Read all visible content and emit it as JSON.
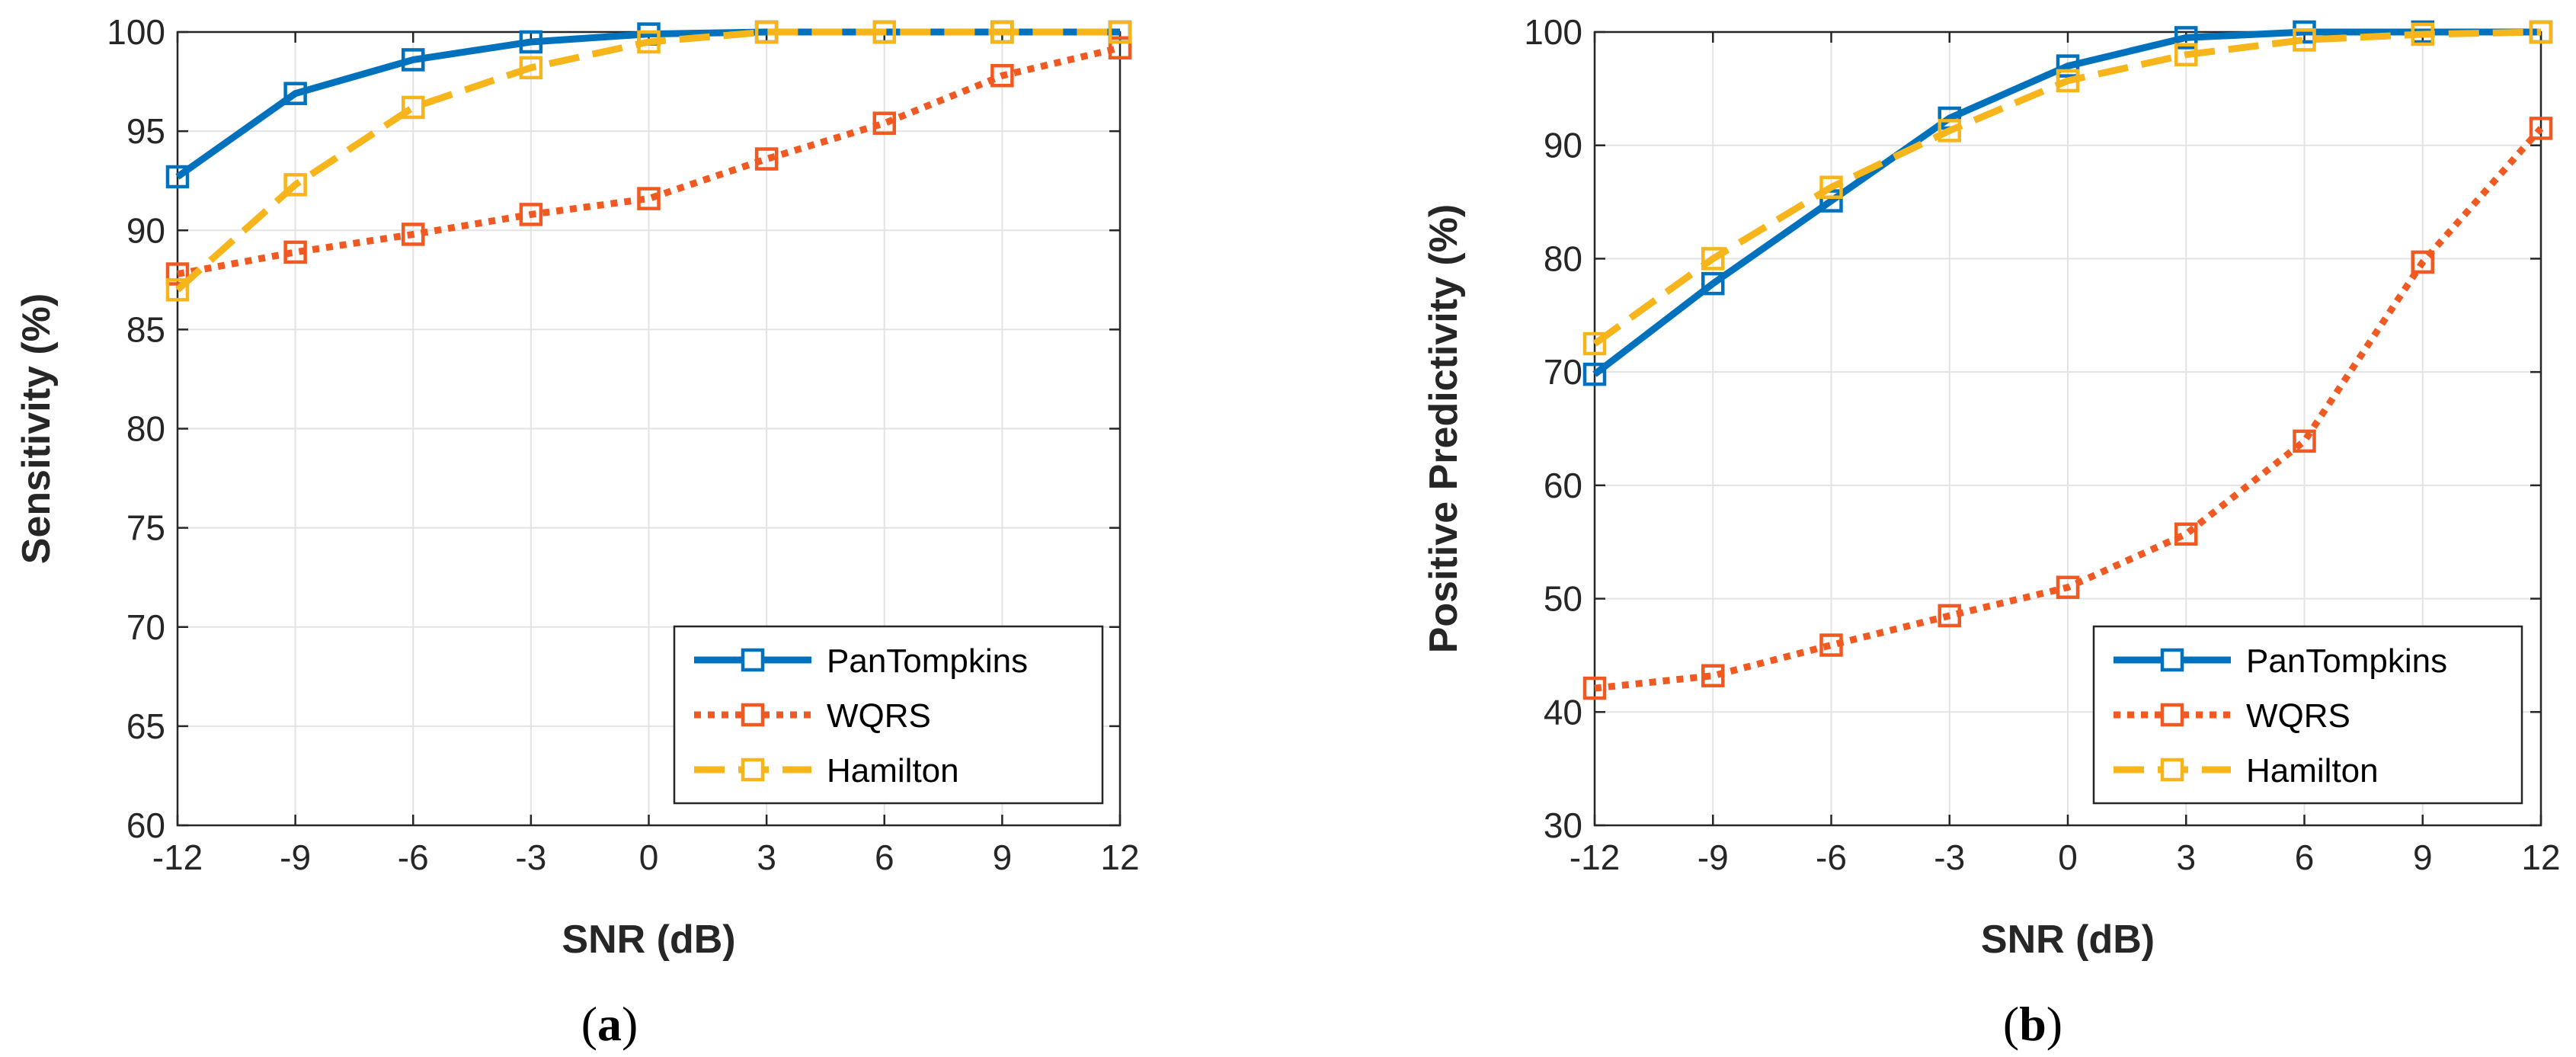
{
  "colors": {
    "pantompkins": "#0072BD",
    "wqrs": "#F05A22",
    "hamilton": "#F5B51B",
    "grid": "#e3e3e3",
    "axis": "#262626"
  },
  "chart_data": [
    {
      "type": "line",
      "caption": {
        "open": "(",
        "letter": "a",
        "close": ")"
      },
      "xlabel": "SNR (dB)",
      "ylabel": "Sensitivity (%)",
      "x": [
        -12,
        -9,
        -6,
        -3,
        0,
        3,
        6,
        9,
        12
      ],
      "xticks": [
        "-12",
        "-9",
        "-6",
        "-3",
        "0",
        "3",
        "6",
        "9",
        "12"
      ],
      "yticks": [
        "60",
        "65",
        "70",
        "75",
        "80",
        "85",
        "90",
        "95",
        "100"
      ],
      "xlim": [
        -12,
        12
      ],
      "ylim": [
        60,
        100
      ],
      "grid": true,
      "legend_position": "bottom-right",
      "series": [
        {
          "name": "PanTompkins",
          "style": "solid",
          "values": [
            92.7,
            96.9,
            98.6,
            99.5,
            99.9,
            100,
            100,
            100,
            100
          ]
        },
        {
          "name": "WQRS",
          "style": "dotted",
          "values": [
            87.8,
            88.9,
            89.8,
            90.8,
            91.6,
            93.6,
            95.4,
            97.8,
            99.2
          ]
        },
        {
          "name": "Hamilton",
          "style": "dashed",
          "values": [
            87.0,
            92.3,
            96.2,
            98.2,
            99.5,
            100,
            100,
            100,
            100
          ]
        }
      ]
    },
    {
      "type": "line",
      "caption": {
        "open": "(",
        "letter": "b",
        "close": ")"
      },
      "xlabel": "SNR (dB)",
      "ylabel": "Positive Predictivity (%)",
      "x": [
        -12,
        -9,
        -6,
        -3,
        0,
        3,
        6,
        9,
        12
      ],
      "xticks": [
        "-12",
        "-9",
        "-6",
        "-3",
        "0",
        "3",
        "6",
        "9",
        "12"
      ],
      "yticks": [
        "30",
        "40",
        "50",
        "60",
        "70",
        "80",
        "90",
        "100"
      ],
      "xlim": [
        -12,
        12
      ],
      "ylim": [
        30,
        100
      ],
      "grid": true,
      "legend_position": "bottom-right",
      "series": [
        {
          "name": "PanTompkins",
          "style": "solid",
          "values": [
            69.8,
            77.8,
            85.1,
            92.4,
            97.0,
            99.5,
            100,
            100,
            100
          ]
        },
        {
          "name": "WQRS",
          "style": "dotted",
          "values": [
            42.1,
            43.2,
            45.9,
            48.5,
            51.0,
            55.7,
            63.9,
            79.7,
            91.5
          ]
        },
        {
          "name": "Hamilton",
          "style": "dashed",
          "values": [
            72.5,
            80.0,
            86.3,
            91.3,
            95.7,
            98.0,
            99.3,
            99.8,
            100
          ]
        }
      ]
    }
  ]
}
